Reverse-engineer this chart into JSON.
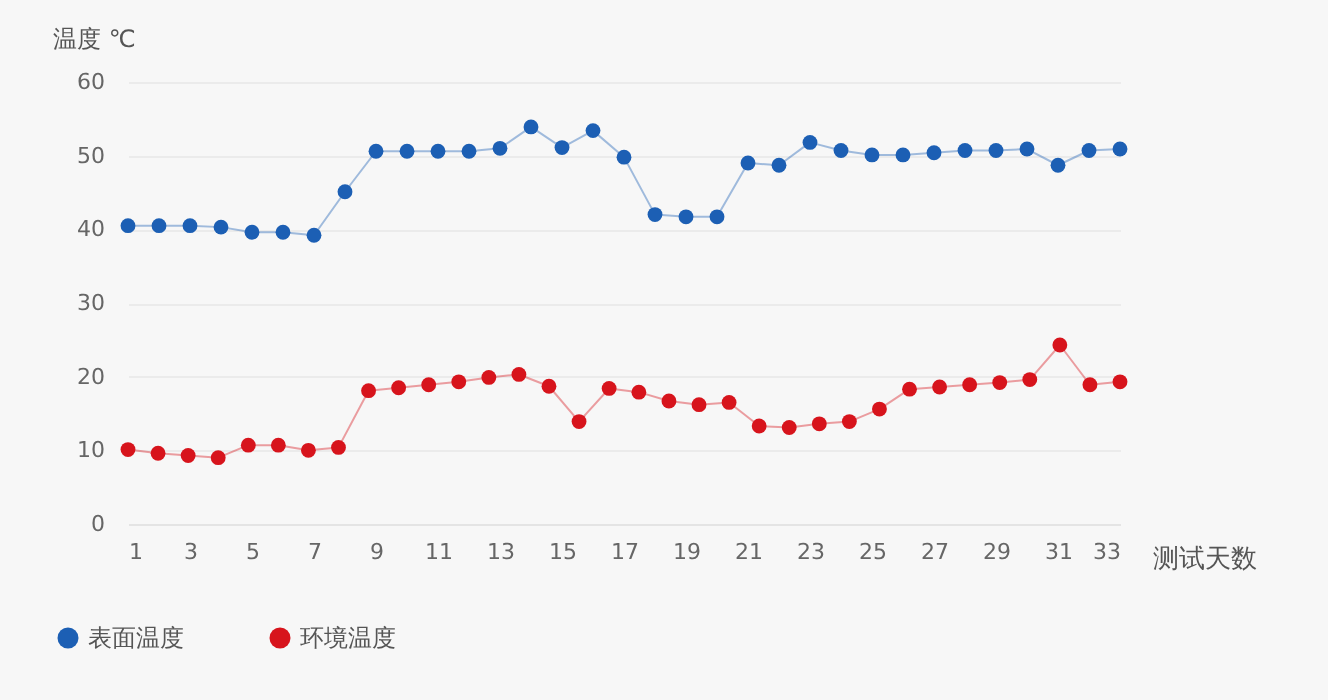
{
  "chart_data": {
    "type": "line",
    "xlabel": "测试天数",
    "ylabel": "温度 ℃",
    "x": [
      1,
      2,
      3,
      4,
      5,
      6,
      7,
      8,
      9,
      10,
      11,
      12,
      13,
      14,
      15,
      16,
      17,
      18,
      19,
      20,
      21,
      22,
      23,
      24,
      25,
      26,
      27,
      28,
      29,
      30,
      31,
      32,
      33
    ],
    "series": [
      {
        "name": "表面温度",
        "color": "#1c5fb4",
        "values": [
          40.5,
          40.5,
          40.5,
          40.3,
          39.6,
          39.6,
          39.2,
          45.1,
          50.6,
          50.6,
          50.6,
          50.6,
          51,
          53.9,
          51.1,
          53.4,
          49.8,
          42,
          41.7,
          41.7,
          49,
          48.7,
          51.8,
          50.7,
          50.1,
          50.1,
          50.4,
          50.7,
          50.7,
          50.9,
          48.7,
          50.7,
          50.9
        ]
      },
      {
        "name": "环境温度",
        "color": "#d7141c",
        "x": [
          1,
          1.97,
          2.94,
          3.91,
          4.88,
          5.85,
          6.82,
          7.79,
          8.76,
          9.73,
          10.7,
          11.67,
          12.64,
          13.61,
          14.58,
          15.55,
          16.52,
          17.48,
          18.45,
          19.42,
          20.39,
          21.36,
          22.33,
          23.3,
          24.27,
          25.24,
          26.21,
          27.18,
          28.15,
          29.12,
          30.09,
          31.06,
          32.03,
          33
        ],
        "values": [
          10.1,
          9.6,
          9.3,
          9,
          10.7,
          10.7,
          10,
          10.4,
          18.1,
          18.5,
          18.9,
          19.3,
          19.9,
          20.3,
          18.7,
          13.9,
          18.4,
          17.9,
          16.7,
          16.2,
          16.5,
          13.3,
          13.1,
          13.6,
          13.9,
          15.6,
          18.3,
          18.6,
          18.9,
          19.2,
          19.6,
          24.3,
          18.9,
          19.3
        ]
      }
    ],
    "xlim": [
      1,
      33
    ],
    "xticks": [
      1,
      3,
      5,
      7,
      9,
      11,
      13,
      15,
      17,
      19,
      21,
      23,
      25,
      27,
      29,
      31,
      33
    ],
    "ylim": [
      0,
      60
    ],
    "yticks": [
      0,
      10,
      20,
      30,
      40,
      50,
      60
    ],
    "grid": "y",
    "legend": "bottom left",
    "marker": "circle",
    "line_style": "solid"
  }
}
